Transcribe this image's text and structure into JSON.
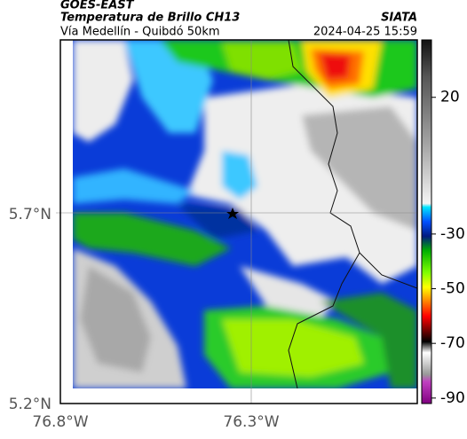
{
  "header": {
    "source": "GOES-EAST",
    "title": "Temperatura de Brillo CH13",
    "brand": "SIATA",
    "subtitle": "Vía Medellín - Quibdó 50km",
    "timestamp": "2024-04-25 15:59"
  },
  "map": {
    "lat_labels": [
      "5.7°N",
      "5.2°N"
    ],
    "lon_labels": [
      "76.8°W",
      "76.3°W"
    ]
  },
  "colorbar": {
    "lim": [
      -92,
      41
    ],
    "ticks": [
      20,
      -30,
      -50,
      -70,
      -90
    ]
  }
}
